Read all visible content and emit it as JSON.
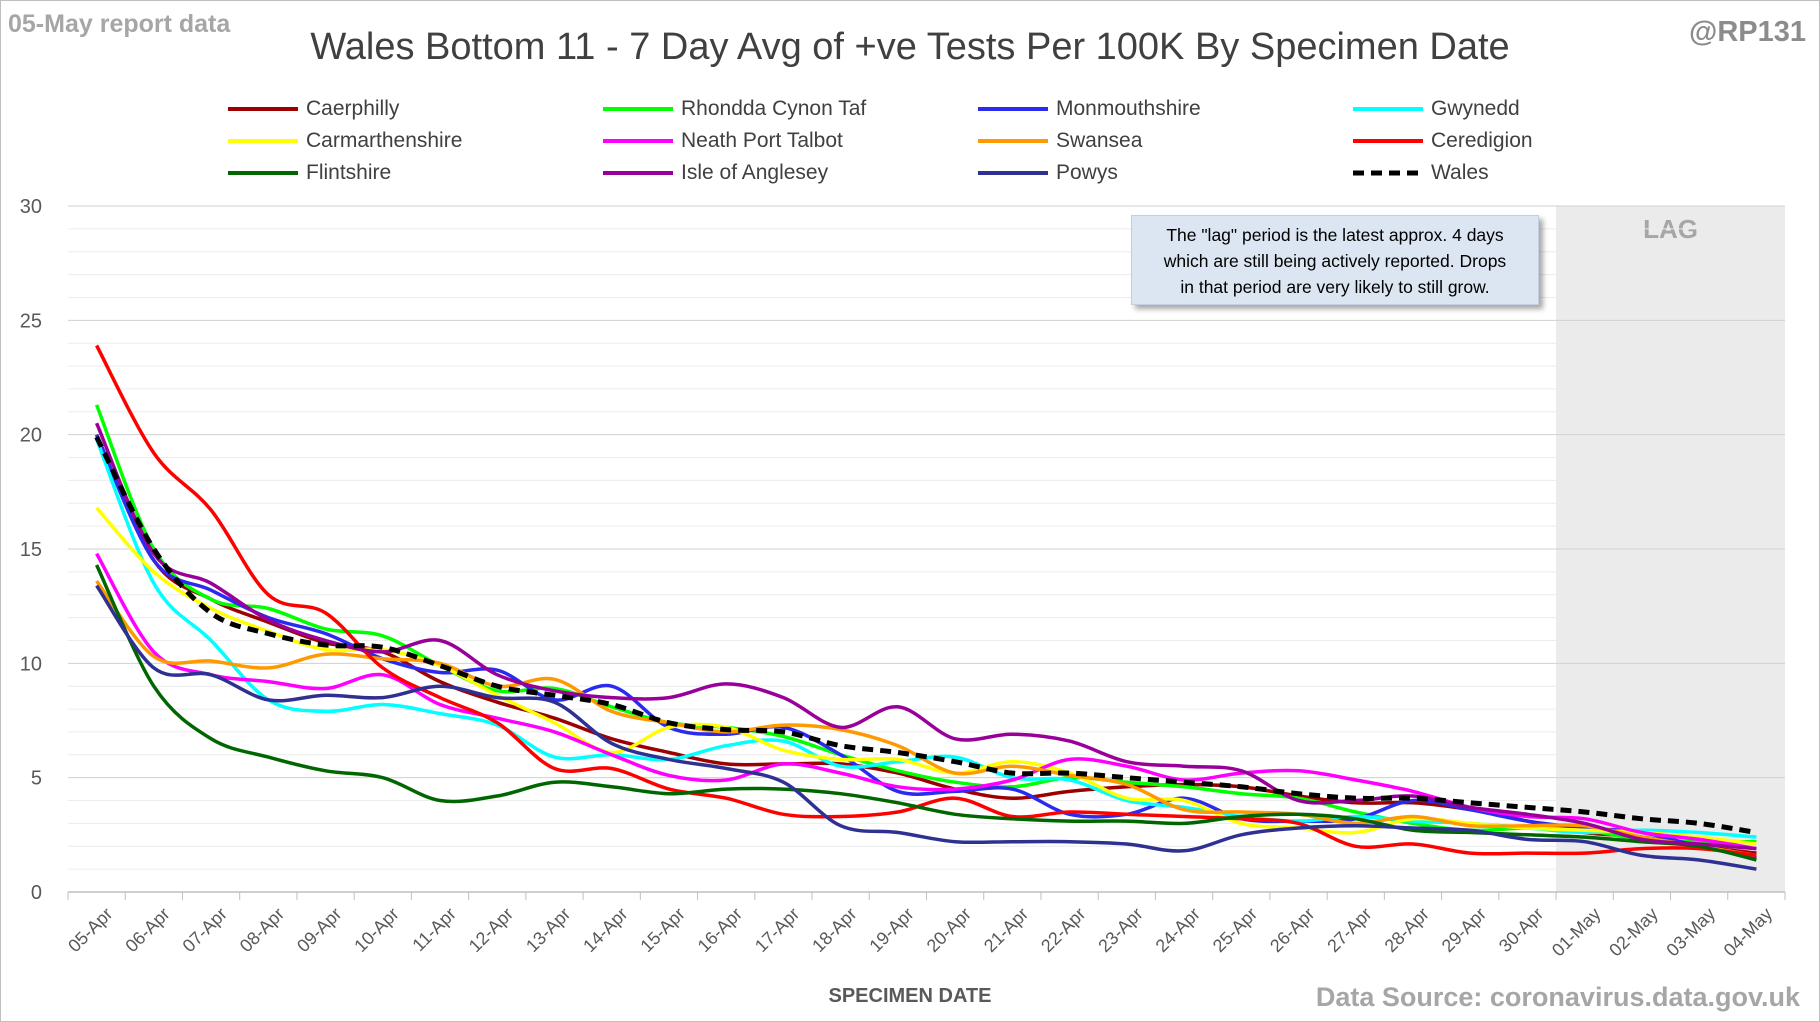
{
  "header": {
    "report_date": "05-May report data",
    "handle": "@RP131",
    "title": "Wales Bottom 11 - 7 Day Avg of +ve Tests Per 100K By Specimen Date",
    "source": "Data Source: coronavirus.data.gov.uk"
  },
  "lag_note": {
    "lines": [
      "The \"lag\" period is the latest approx. 4 days",
      "which are still being actively reported.  Drops",
      "in that period are very likely to still grow."
    ]
  },
  "chart_data": {
    "type": "line",
    "title": "Wales Bottom 11 - 7 Day Avg of +ve Tests Per 100K By Specimen Date",
    "xlabel": "SPECIMEN DATE",
    "ylabel": "",
    "ylim": [
      0,
      30
    ],
    "yticks": [
      0,
      5,
      10,
      15,
      20,
      25,
      30
    ],
    "grid": true,
    "minor_grid_step": 1,
    "legend_position": "top",
    "lag_band": {
      "from": "01-May",
      "to": "04-May",
      "label": "LAG"
    },
    "categories": [
      "05-Apr",
      "06-Apr",
      "07-Apr",
      "08-Apr",
      "09-Apr",
      "10-Apr",
      "11-Apr",
      "12-Apr",
      "13-Apr",
      "14-Apr",
      "15-Apr",
      "16-Apr",
      "17-Apr",
      "18-Apr",
      "19-Apr",
      "20-Apr",
      "21-Apr",
      "22-Apr",
      "23-Apr",
      "24-Apr",
      "25-Apr",
      "26-Apr",
      "27-Apr",
      "28-Apr",
      "29-Apr",
      "30-Apr",
      "01-May",
      "02-May",
      "03-May",
      "04-May"
    ],
    "series": [
      {
        "name": "Caerphilly",
        "color": "#9c0000",
        "dashed": false,
        "values": [
          20.0,
          14.5,
          12.8,
          11.8,
          10.9,
          10.5,
          9.2,
          8.3,
          7.6,
          6.7,
          6.1,
          5.6,
          5.6,
          5.6,
          5.2,
          4.5,
          4.1,
          4.4,
          4.6,
          4.7,
          4.6,
          4.2,
          3.9,
          3.9,
          3.6,
          3.1,
          2.6,
          2.4,
          2.0,
          1.7
        ]
      },
      {
        "name": "Rhondda Cynon Taf",
        "color": "#00ff00",
        "dashed": false,
        "values": [
          21.3,
          15.0,
          12.8,
          12.4,
          11.5,
          11.2,
          9.9,
          8.8,
          8.9,
          8.1,
          7.4,
          7.2,
          6.8,
          6.0,
          5.3,
          4.8,
          4.6,
          5.0,
          4.8,
          4.6,
          4.3,
          4.1,
          3.5,
          3.0,
          2.7,
          2.8,
          2.7,
          2.3,
          2.2,
          2.2
        ]
      },
      {
        "name": "Monmouthshire",
        "color": "#2b2bf0",
        "dashed": false,
        "values": [
          20.0,
          14.5,
          13.2,
          12.0,
          11.3,
          10.2,
          9.6,
          9.7,
          8.4,
          9.0,
          7.2,
          6.9,
          7.2,
          6.0,
          4.4,
          4.4,
          4.5,
          3.4,
          3.4,
          4.1,
          3.2,
          3.1,
          3.2,
          4.0,
          3.6,
          3.1,
          2.8,
          2.6,
          2.0,
          1.5
        ]
      },
      {
        "name": "Gwynedd",
        "color": "#00ffff",
        "dashed": false,
        "values": [
          19.8,
          13.5,
          11.0,
          8.4,
          7.9,
          8.2,
          7.8,
          7.3,
          5.9,
          6.0,
          5.8,
          6.4,
          6.6,
          5.5,
          5.7,
          5.9,
          5.0,
          4.9,
          4.0,
          3.7,
          3.3,
          3.1,
          3.3,
          3.1,
          3.0,
          2.8,
          2.6,
          2.7,
          2.6,
          2.4
        ]
      },
      {
        "name": "Carmarthenshire",
        "color": "#ffff00",
        "dashed": false,
        "values": [
          16.8,
          14.0,
          12.4,
          11.4,
          10.6,
          10.6,
          9.9,
          8.6,
          7.4,
          6.1,
          7.2,
          7.2,
          6.2,
          5.8,
          5.8,
          5.2,
          5.7,
          5.2,
          4.1,
          4.0,
          3.0,
          2.8,
          2.6,
          3.2,
          3.0,
          2.8,
          2.7,
          2.6,
          2.4,
          2.1
        ]
      },
      {
        "name": "Neath Port Talbot",
        "color": "#ff00ff",
        "dashed": false,
        "values": [
          14.8,
          10.5,
          9.5,
          9.2,
          8.9,
          9.5,
          8.2,
          7.6,
          7.0,
          6.0,
          5.1,
          4.9,
          5.6,
          5.2,
          4.6,
          4.5,
          4.9,
          5.8,
          5.5,
          4.9,
          5.2,
          5.3,
          4.9,
          4.4,
          3.7,
          3.3,
          3.2,
          2.6,
          2.3,
          1.9
        ]
      },
      {
        "name": "Swansea",
        "color": "#ff9900",
        "dashed": false,
        "values": [
          13.6,
          10.3,
          10.1,
          9.8,
          10.4,
          10.2,
          10.0,
          9.0,
          9.3,
          7.9,
          7.4,
          7.0,
          7.3,
          7.1,
          6.4,
          5.2,
          5.5,
          5.1,
          4.7,
          3.6,
          3.5,
          3.4,
          3.0,
          3.3,
          2.9,
          2.9,
          2.9,
          2.4,
          2.0,
          1.6
        ]
      },
      {
        "name": "Ceredigion",
        "color": "#ff0000",
        "dashed": false,
        "values": [
          23.9,
          19.2,
          16.7,
          13.0,
          12.2,
          9.8,
          8.5,
          7.4,
          5.4,
          5.4,
          4.5,
          4.1,
          3.4,
          3.3,
          3.5,
          4.1,
          3.3,
          3.5,
          3.4,
          3.3,
          3.2,
          3.0,
          2.0,
          2.1,
          1.7,
          1.7,
          1.7,
          1.9,
          1.9,
          1.6
        ]
      },
      {
        "name": "Flintshire",
        "color": "#006600",
        "dashed": false,
        "values": [
          14.3,
          9.0,
          6.7,
          5.9,
          5.3,
          5.0,
          4.0,
          4.2,
          4.8,
          4.6,
          4.3,
          4.5,
          4.5,
          4.3,
          3.9,
          3.4,
          3.2,
          3.1,
          3.1,
          3.0,
          3.3,
          3.4,
          3.2,
          2.7,
          2.6,
          2.5,
          2.4,
          2.2,
          2.0,
          1.4
        ]
      },
      {
        "name": "Isle of Anglesey",
        "color": "#990099",
        "dashed": false,
        "values": [
          20.5,
          14.8,
          13.5,
          11.9,
          11.0,
          10.5,
          11.0,
          9.5,
          8.8,
          8.5,
          8.5,
          9.1,
          8.5,
          7.2,
          8.1,
          6.7,
          6.9,
          6.6,
          5.7,
          5.5,
          5.3,
          4.0,
          4.0,
          4.2,
          3.7,
          3.4,
          3.0,
          2.3,
          2.1,
          1.9
        ]
      },
      {
        "name": "Powys",
        "color": "#2e3192",
        "dashed": false,
        "values": [
          13.4,
          9.8,
          9.5,
          8.4,
          8.6,
          8.5,
          9.0,
          8.5,
          8.3,
          6.5,
          5.8,
          5.4,
          4.8,
          2.9,
          2.6,
          2.2,
          2.2,
          2.2,
          2.1,
          1.8,
          2.5,
          2.8,
          2.9,
          2.8,
          2.7,
          2.3,
          2.2,
          1.6,
          1.4,
          1.0
        ]
      },
      {
        "name": "Wales",
        "color": "#000000",
        "dashed": true,
        "values": [
          19.9,
          15.0,
          12.2,
          11.3,
          10.8,
          10.7,
          9.9,
          9.0,
          8.6,
          8.2,
          7.4,
          7.1,
          7.0,
          6.4,
          6.1,
          5.7,
          5.2,
          5.2,
          5.0,
          4.8,
          4.6,
          4.3,
          4.1,
          4.1,
          3.9,
          3.7,
          3.5,
          3.2,
          3.0,
          2.6
        ]
      }
    ]
  }
}
